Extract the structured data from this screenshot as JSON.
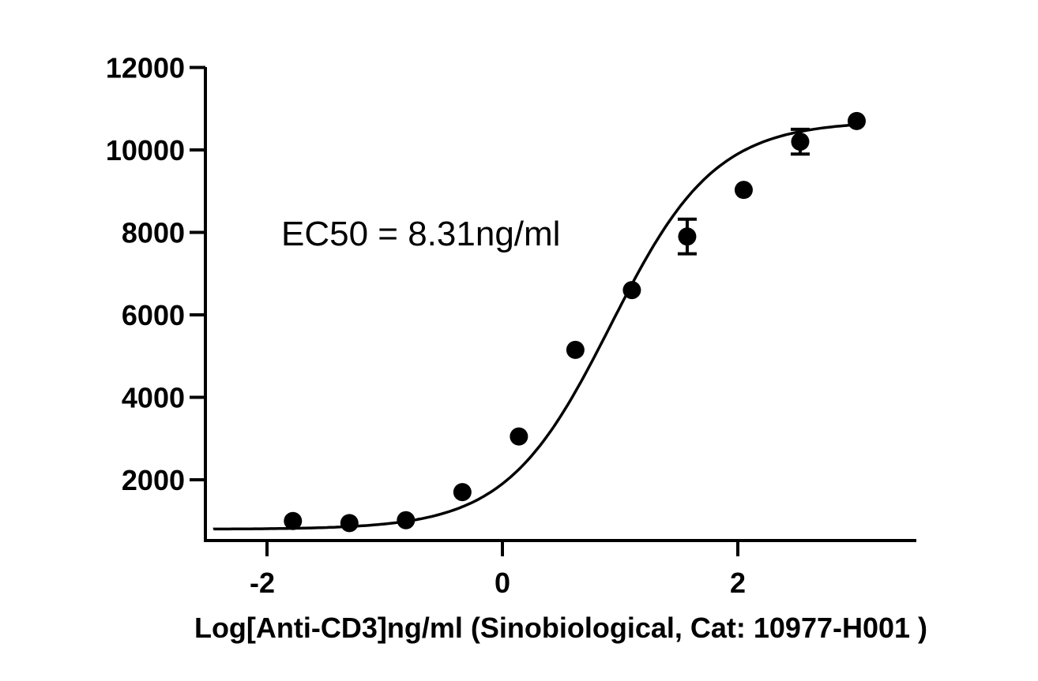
{
  "chart_data": {
    "type": "scatter",
    "title": "",
    "xlabel": "Log[Anti-CD3]ng/ml (Sinobiological, Cat: 10977-H001 )",
    "ylabel": "",
    "xlim": [
      -2.5,
      3.5
    ],
    "ylim": [
      700,
      12000
    ],
    "x_ticks": [
      -2,
      0,
      2
    ],
    "x_tick_labels": [
      "-2",
      "0",
      "2"
    ],
    "y_ticks": [
      2000,
      4000,
      6000,
      8000,
      10000,
      12000
    ],
    "y_tick_labels": [
      "2000",
      "4000",
      "6000",
      "8000",
      "10000",
      "12000"
    ],
    "grid": false,
    "annotation": "EC50 = 8.31ng/ml",
    "series": [
      {
        "points": [
          {
            "x": -1.78,
            "y": 1000,
            "err": 0
          },
          {
            "x": -1.3,
            "y": 950,
            "err": 0
          },
          {
            "x": -0.82,
            "y": 1020,
            "err": 0
          },
          {
            "x": -0.34,
            "y": 1700,
            "err": 0
          },
          {
            "x": 0.14,
            "y": 3050,
            "err": 0
          },
          {
            "x": 0.62,
            "y": 5150,
            "err": 0
          },
          {
            "x": 1.1,
            "y": 6600,
            "err": 0
          },
          {
            "x": 1.57,
            "y": 7900,
            "err": 420
          },
          {
            "x": 2.05,
            "y": 9030,
            "err": 0
          },
          {
            "x": 2.53,
            "y": 10200,
            "err": 300
          },
          {
            "x": 3.01,
            "y": 10700,
            "err": 0
          }
        ],
        "fit": {
          "model": "4PL",
          "bottom": 800,
          "top": 10700,
          "log_ec50": 0.92,
          "hill": 0.98
        }
      }
    ],
    "colors": {
      "points": "#000000",
      "curve": "#000000",
      "axes": "#000000"
    }
  }
}
